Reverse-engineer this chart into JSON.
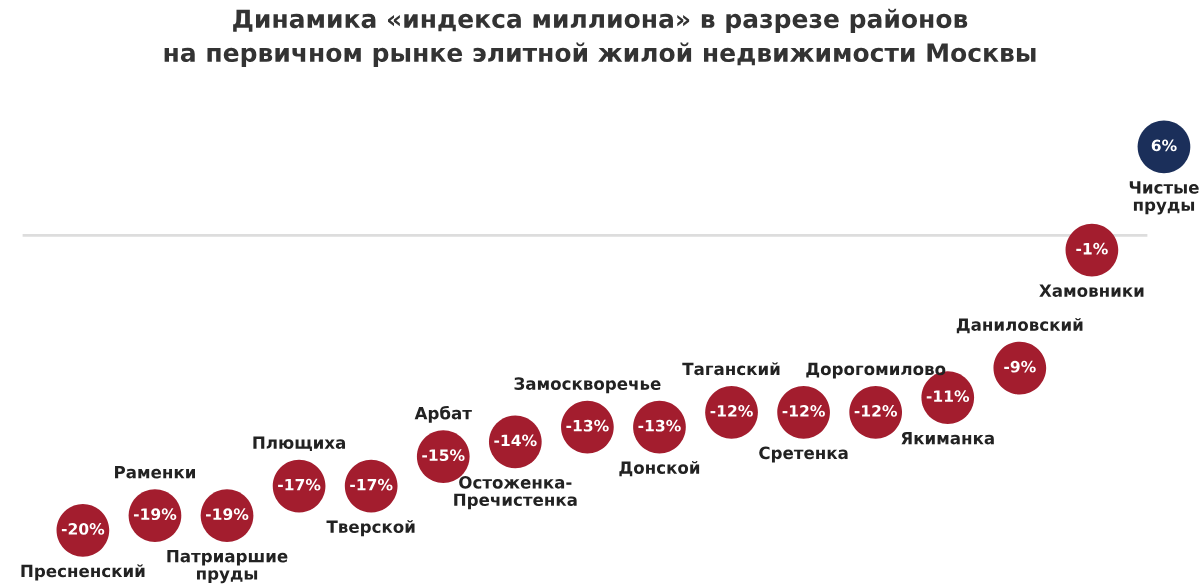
{
  "chart_data": {
    "type": "scatter",
    "title": "Динамика «индекса миллиона» в разрезе районов\nна первичном рынке элитной жилой недвижимости Москвы",
    "categories": [
      "Пресненский",
      "Раменки",
      "Патриаршие пруды",
      "Плющиха",
      "Тверской",
      "Арбат",
      "Остоженка-Пречистенка",
      "Замоскворечье",
      "Донской",
      "Таганский",
      "Сретенка",
      "Дорогомилово",
      "Якиманка",
      "Даниловский",
      "Хамовники",
      "Чистые пруды"
    ],
    "values": [
      -20,
      -19,
      -19,
      -17,
      -17,
      -15,
      -14,
      -13,
      -13,
      -12,
      -12,
      -12,
      -11,
      -9,
      -1,
      6
    ],
    "colors": [
      "#a31d2e",
      "#a31d2e",
      "#a31d2e",
      "#a31d2e",
      "#a31d2e",
      "#a31d2e",
      "#a31d2e",
      "#a31d2e",
      "#a31d2e",
      "#a31d2e",
      "#a31d2e",
      "#a31d2e",
      "#a31d2e",
      "#a31d2e",
      "#a31d2e",
      "#1b2f5a"
    ],
    "value_labels": [
      "-20%",
      "-19%",
      "-19%",
      "-17%",
      "-17%",
      "-15%",
      "-14%",
      "-13%",
      "-13%",
      "-12%",
      "-12%",
      "-12%",
      "-11%",
      "-9%",
      "-1%",
      "6%"
    ],
    "ref_lines": [
      {
        "axis": "y",
        "value": 0,
        "color": "#dddddd"
      }
    ],
    "marker": "circle"
  }
}
